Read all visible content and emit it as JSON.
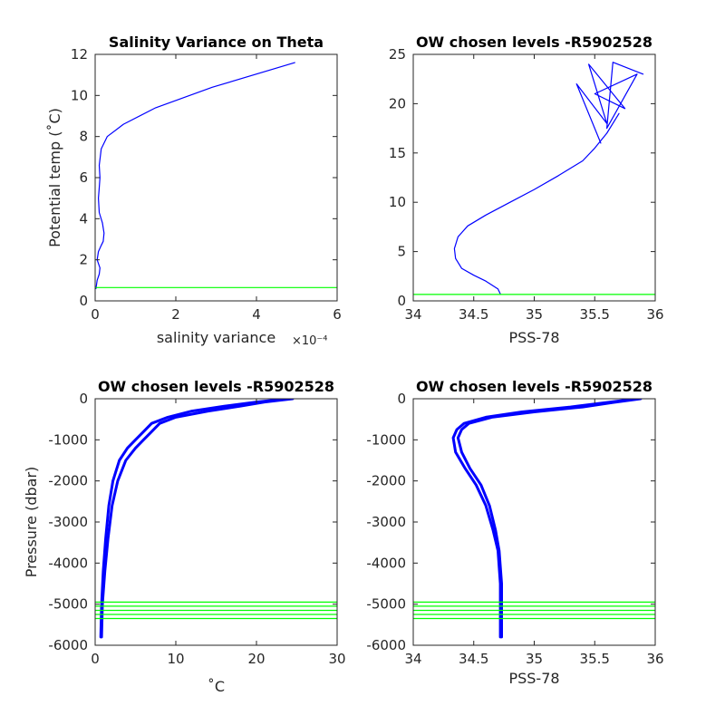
{
  "chart_data": [
    {
      "type": "line",
      "title": "Salinity Variance on Theta",
      "xlabel": "salinity variance",
      "x_exponent": "×10⁻⁴",
      "ylabel": "Potential temp (˚C)",
      "xlim": [
        0,
        6
      ],
      "ylim": [
        0,
        12
      ],
      "xticks": [
        0,
        2,
        4,
        6
      ],
      "xtick_labels": [
        "0",
        "2",
        "4",
        "6"
      ],
      "yticks": [
        0,
        2,
        4,
        6,
        8,
        10,
        12
      ],
      "ytick_labels": [
        "0",
        "2",
        "4",
        "6",
        "8",
        "10",
        "12"
      ],
      "series": [
        {
          "color": "#0000ff",
          "x": [
            0.02,
            0.05,
            0.1,
            0.12,
            0.05,
            0.08,
            0.15,
            0.2,
            0.22,
            0.18,
            0.1,
            0.08,
            0.1,
            0.12,
            0.1,
            0.15,
            0.3,
            0.7,
            1.5,
            2.9,
            4.95
          ],
          "y": [
            0.6,
            1.0,
            1.3,
            1.6,
            2.0,
            2.4,
            2.7,
            2.9,
            3.3,
            3.8,
            4.3,
            5.0,
            5.5,
            6.0,
            6.6,
            7.4,
            8.0,
            8.6,
            9.4,
            10.4,
            11.6
          ]
        },
        {
          "color": "#00ff00",
          "x": [
            0,
            6
          ],
          "y": [
            0.65,
            0.65
          ]
        }
      ]
    },
    {
      "type": "line",
      "title": "OW chosen levels -R5902528",
      "xlabel": "PSS-78",
      "ylabel": "",
      "xlim": [
        34,
        36
      ],
      "ylim": [
        0,
        25
      ],
      "xticks": [
        34,
        34.5,
        35,
        35.5,
        36
      ],
      "xtick_labels": [
        "34",
        "34.5",
        "35",
        "35.5",
        "36"
      ],
      "yticks": [
        0,
        5,
        10,
        15,
        20,
        25
      ],
      "ytick_labels": [
        "0",
        "5",
        "10",
        "15",
        "20",
        "25"
      ],
      "series": [
        {
          "color": "#0000ff",
          "x": [
            34.72,
            34.7,
            34.6,
            34.5,
            34.4,
            34.35,
            34.34,
            34.37,
            34.45,
            34.6,
            34.8,
            35.0,
            35.2,
            35.4,
            35.5,
            35.6,
            35.7
          ],
          "y": [
            0.7,
            1.2,
            2.0,
            2.6,
            3.3,
            4.3,
            5.3,
            6.5,
            7.6,
            8.7,
            10.0,
            11.3,
            12.7,
            14.2,
            15.5,
            17.0,
            19.0
          ]
        },
        {
          "color": "#0000ff",
          "x": [
            35.55,
            35.35,
            35.6,
            35.45,
            35.75,
            35.5,
            35.85,
            35.6,
            35.65,
            35.9
          ],
          "y": [
            16.0,
            22.0,
            18.0,
            24.0,
            19.5,
            21.0,
            23.0,
            17.5,
            24.2,
            23.0
          ]
        },
        {
          "color": "#00ff00",
          "x": [
            34,
            36
          ],
          "y": [
            0.65,
            0.65
          ]
        }
      ]
    },
    {
      "type": "line",
      "title": "OW chosen levels -R5902528",
      "xlabel": "˚C",
      "ylabel": "Pressure (dbar)",
      "xlim": [
        0,
        30
      ],
      "ylim": [
        -6000,
        0
      ],
      "xticks": [
        0,
        10,
        20,
        30
      ],
      "xtick_labels": [
        "0",
        "10",
        "20",
        "30"
      ],
      "yticks": [
        -6000,
        -5000,
        -4000,
        -3000,
        -2000,
        -1000,
        0
      ],
      "ytick_labels": [
        "-6000",
        "-5000",
        "-4000",
        "-3000",
        "-2000",
        "-1000",
        "0"
      ],
      "series": [
        {
          "color": "#0000ff",
          "x": [
            0.7,
            0.8,
            1.0,
            1.3,
            1.7,
            2.2,
            3.0,
            4.0,
            5.0,
            6.0,
            7.0,
            9.0,
            12.0,
            16.0,
            20.0,
            24.0
          ],
          "y": [
            -5800,
            -5000,
            -4200,
            -3400,
            -2600,
            -2000,
            -1500,
            -1200,
            -1000,
            -800,
            -600,
            -450,
            -300,
            -180,
            -80,
            0
          ]
        },
        {
          "color": "#0000ff",
          "x": [
            0.8,
            0.9,
            1.2,
            1.6,
            2.1,
            2.8,
            3.8,
            5.0,
            6.0,
            7.0,
            8.0,
            10.0,
            14.0,
            18.0,
            21.0,
            24.5
          ],
          "y": [
            -5800,
            -5000,
            -4200,
            -3400,
            -2600,
            -2000,
            -1500,
            -1200,
            -1000,
            -800,
            -600,
            -450,
            -300,
            -180,
            -80,
            0
          ]
        },
        {
          "color": "#00ff00",
          "x": [
            0,
            30
          ],
          "y": [
            -4950,
            -4950
          ]
        },
        {
          "color": "#00ff00",
          "x": [
            0,
            30
          ],
          "y": [
            -5050,
            -5050
          ]
        },
        {
          "color": "#00ff00",
          "x": [
            0,
            30
          ],
          "y": [
            -5150,
            -5150
          ]
        },
        {
          "color": "#00ff00",
          "x": [
            0,
            30
          ],
          "y": [
            -5250,
            -5250
          ]
        },
        {
          "color": "#00ff00",
          "x": [
            0,
            30
          ],
          "y": [
            -5350,
            -5350
          ]
        }
      ]
    },
    {
      "type": "line",
      "title": "OW chosen levels -R5902528",
      "xlabel": "PSS-78",
      "ylabel": "",
      "xlim": [
        34,
        36
      ],
      "ylim": [
        -6000,
        0
      ],
      "xticks": [
        34,
        34.5,
        35,
        35.5,
        36
      ],
      "xtick_labels": [
        "34",
        "34.5",
        "35",
        "35.5",
        "36"
      ],
      "yticks": [
        -6000,
        -5000,
        -4000,
        -3000,
        -2000,
        -1000,
        0
      ],
      "ytick_labels": [
        "-6000",
        "-5000",
        "-4000",
        "-3000",
        "-2000",
        "-1000",
        "0"
      ],
      "series": [
        {
          "color": "#0000ff",
          "x": [
            34.72,
            34.72,
            34.7,
            34.66,
            34.6,
            34.52,
            34.43,
            34.35,
            34.33,
            34.36,
            34.42,
            34.6,
            34.9,
            35.3,
            35.6,
            35.85
          ],
          "y": [
            -5800,
            -4500,
            -3700,
            -3200,
            -2600,
            -2100,
            -1700,
            -1300,
            -950,
            -750,
            -600,
            -450,
            -320,
            -200,
            -90,
            0
          ]
        },
        {
          "color": "#0000ff",
          "x": [
            34.73,
            34.73,
            34.71,
            34.68,
            34.63,
            34.56,
            34.47,
            34.4,
            34.37,
            34.4,
            34.46,
            34.65,
            35.0,
            35.4,
            35.65,
            35.88
          ],
          "y": [
            -5800,
            -4500,
            -3700,
            -3200,
            -2600,
            -2100,
            -1700,
            -1300,
            -950,
            -750,
            -600,
            -450,
            -320,
            -200,
            -90,
            0
          ]
        },
        {
          "color": "#00ff00",
          "x": [
            34,
            36
          ],
          "y": [
            -4950,
            -4950
          ]
        },
        {
          "color": "#00ff00",
          "x": [
            34,
            36
          ],
          "y": [
            -5050,
            -5050
          ]
        },
        {
          "color": "#00ff00",
          "x": [
            34,
            36
          ],
          "y": [
            -5150,
            -5150
          ]
        },
        {
          "color": "#00ff00",
          "x": [
            34,
            36
          ],
          "y": [
            -5250,
            -5250
          ]
        },
        {
          "color": "#00ff00",
          "x": [
            34,
            36
          ],
          "y": [
            -5350,
            -5350
          ]
        }
      ]
    }
  ]
}
